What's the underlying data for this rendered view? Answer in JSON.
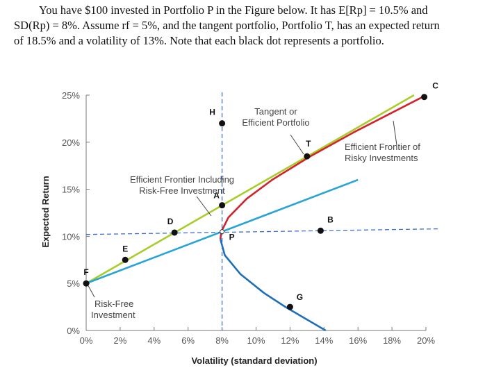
{
  "intro": {
    "line1": "You have $100 invested in Portfolio P in the Figure below. It has E[Rp] = 10.5% and",
    "line2": "SD(Rp) = 8%. Assume rf = 5%, and the tangent portfolio, Portfolio T, has an expected return",
    "line3": "of 18.5% and a volatility of 13%. Note that each black dot represents a portfolio."
  },
  "chart_data": {
    "type": "line",
    "xlabel": "Volatility (standard deviation)",
    "ylabel": "Expected Return",
    "xlim": [
      0,
      20
    ],
    "ylim": [
      0,
      25
    ],
    "x_ticks": [
      "0%",
      "2%",
      "4%",
      "6%",
      "8%",
      "10%",
      "12%",
      "14%",
      "16%",
      "18%",
      "20%"
    ],
    "y_ticks": [
      "0%",
      "5%",
      "10%",
      "15%",
      "20%",
      "25%"
    ],
    "portfolios": [
      {
        "label": "F",
        "x": 0,
        "y": 5
      },
      {
        "label": "E",
        "x": 2.3,
        "y": 7.5
      },
      {
        "label": "D",
        "x": 5.2,
        "y": 10.4
      },
      {
        "label": "A",
        "x": 8,
        "y": 13.3
      },
      {
        "label": "H",
        "x": 8,
        "y": 22
      },
      {
        "label": "T",
        "x": 13,
        "y": 18.5
      },
      {
        "label": "B",
        "x": 13.8,
        "y": 10.6
      },
      {
        "label": "G",
        "x": 12,
        "y": 2.5
      },
      {
        "label": "C",
        "x": 19.9,
        "y": 24.8
      }
    ],
    "point_p": {
      "label": "P",
      "x": 8,
      "y": 10.5
    },
    "series": [
      {
        "id": "cml",
        "color": "#a8cc2a",
        "points": [
          [
            0,
            5
          ],
          [
            19.3,
            25
          ]
        ]
      },
      {
        "id": "rf-p-line",
        "color": "#2aa4d4",
        "points": [
          [
            0,
            5
          ],
          [
            16,
            16
          ]
        ]
      },
      {
        "id": "efficient-frontier",
        "color": "#d2232a",
        "points": [
          [
            7.9,
            9.7
          ],
          [
            7.96,
            10.5
          ],
          [
            8.37,
            12
          ],
          [
            9.45,
            14
          ],
          [
            10.95,
            16
          ],
          [
            13.2,
            18.5
          ],
          [
            15.7,
            21
          ],
          [
            19.8,
            24.8
          ]
        ]
      },
      {
        "id": "inefficient-frontier",
        "color": "#1f6fb8",
        "points": [
          [
            7.9,
            9.7
          ],
          [
            8.16,
            8
          ],
          [
            9.07,
            6
          ],
          [
            10.46,
            4
          ],
          [
            11.73,
            2.5
          ],
          [
            14.1,
            0
          ]
        ]
      },
      {
        "id": "h-dashed",
        "color": "#3a6fd0",
        "dashed": true,
        "points": [
          [
            0,
            10.2
          ],
          [
            20.7,
            10.8
          ]
        ]
      },
      {
        "id": "v-dashed",
        "color": "#3a6fd0",
        "dashed": true,
        "points": [
          [
            8,
            25.3
          ],
          [
            8,
            0
          ]
        ]
      }
    ],
    "annotations": {
      "tangent": [
        "Tangent or",
        "Efficient Portfolio"
      ],
      "frontier_risky": [
        "Efficient Frontier of",
        "Risky Investments"
      ],
      "frontier_rf": [
        "Efficient Frontier Including",
        "Risk-Free Investment"
      ],
      "risk_free": [
        "Risk-Free",
        "Investment"
      ]
    }
  }
}
